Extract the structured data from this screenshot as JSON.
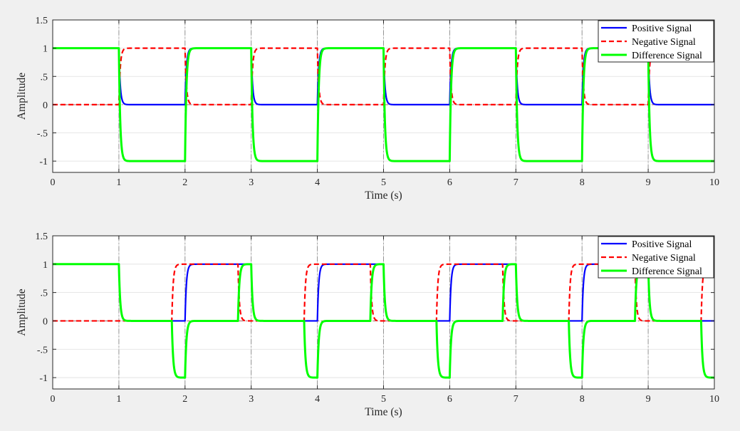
{
  "colors": {
    "positive": "#0000ff",
    "negative": "#ff0000",
    "difference": "#00ff00",
    "figure_background": "#f0f0f0",
    "axes_background": "#ffffff"
  },
  "chart_data": [
    {
      "type": "line",
      "title": "",
      "xlabel": "Time (s)",
      "ylabel": "Amplitude",
      "xlim": [
        0,
        10
      ],
      "ylim": [
        -1.2,
        1.5
      ],
      "xticks": [
        0,
        1,
        2,
        3,
        4,
        5,
        6,
        7,
        8,
        9,
        10
      ],
      "yticks": [
        1.5,
        1,
        0.5,
        0,
        -0.5,
        -1
      ],
      "grid": true,
      "legend_position": "top-right",
      "series": [
        {
          "name": "Positive Signal",
          "color": "#0000ff",
          "style": "solid",
          "edges": [
            [
              0,
              1
            ],
            [
              1,
              0
            ],
            [
              2,
              1
            ],
            [
              3,
              0
            ],
            [
              4,
              1
            ],
            [
              5,
              0
            ],
            [
              6,
              1
            ],
            [
              7,
              0
            ],
            [
              8,
              1
            ],
            [
              9,
              0
            ]
          ]
        },
        {
          "name": "Negative Signal",
          "color": "#ff0000",
          "style": "dashed",
          "edges": [
            [
              0,
              0
            ],
            [
              1,
              1
            ],
            [
              2,
              0
            ],
            [
              3,
              1
            ],
            [
              4,
              0
            ],
            [
              5,
              1
            ],
            [
              6,
              0
            ],
            [
              7,
              1
            ],
            [
              8,
              0
            ],
            [
              9,
              1
            ]
          ]
        },
        {
          "name": "Difference Signal",
          "color": "#00ff00",
          "style": "solid",
          "edges": [
            [
              0,
              1
            ],
            [
              1,
              -1
            ],
            [
              2,
              1
            ],
            [
              3,
              -1
            ],
            [
              4,
              1
            ],
            [
              5,
              -1
            ],
            [
              6,
              1
            ],
            [
              7,
              -1
            ],
            [
              8,
              1
            ],
            [
              9,
              -1
            ]
          ]
        }
      ]
    },
    {
      "type": "line",
      "title": "",
      "xlabel": "Time (s)",
      "ylabel": "Amplitude",
      "xlim": [
        0,
        10
      ],
      "ylim": [
        -1.2,
        1.5
      ],
      "xticks": [
        0,
        1,
        2,
        3,
        4,
        5,
        6,
        7,
        8,
        9,
        10
      ],
      "yticks": [
        1.5,
        1,
        0.5,
        0,
        -0.5,
        -1
      ],
      "grid": true,
      "legend_position": "top-right",
      "series": [
        {
          "name": "Positive Signal",
          "color": "#0000ff",
          "style": "solid",
          "edges": [
            [
              0,
              1
            ],
            [
              1,
              0
            ],
            [
              2,
              1
            ],
            [
              3,
              0
            ],
            [
              4,
              1
            ],
            [
              5,
              0
            ],
            [
              6,
              1
            ],
            [
              7,
              0
            ],
            [
              8,
              1
            ],
            [
              9,
              0
            ]
          ]
        },
        {
          "name": "Negative Signal",
          "color": "#ff0000",
          "style": "dashed",
          "edges": [
            [
              0,
              0
            ],
            [
              1.8,
              1
            ],
            [
              2.8,
              0
            ],
            [
              3.8,
              1
            ],
            [
              4.8,
              0
            ],
            [
              5.8,
              1
            ],
            [
              6.8,
              0
            ],
            [
              7.8,
              1
            ],
            [
              8.8,
              0
            ],
            [
              9.8,
              1
            ]
          ]
        },
        {
          "name": "Difference Signal",
          "color": "#00ff00",
          "style": "solid",
          "edges": [
            [
              0,
              1
            ],
            [
              1,
              0
            ],
            [
              1.8,
              -1
            ],
            [
              2,
              0
            ],
            [
              2.8,
              1
            ],
            [
              3,
              0
            ],
            [
              3.8,
              -1
            ],
            [
              4,
              0
            ],
            [
              4.8,
              1
            ],
            [
              5,
              0
            ],
            [
              5.8,
              -1
            ],
            [
              6,
              0
            ],
            [
              6.8,
              1
            ],
            [
              7,
              0
            ],
            [
              7.8,
              -1
            ],
            [
              8,
              0
            ],
            [
              8.8,
              1
            ],
            [
              9,
              0
            ],
            [
              9.8,
              -1
            ]
          ]
        }
      ]
    }
  ]
}
